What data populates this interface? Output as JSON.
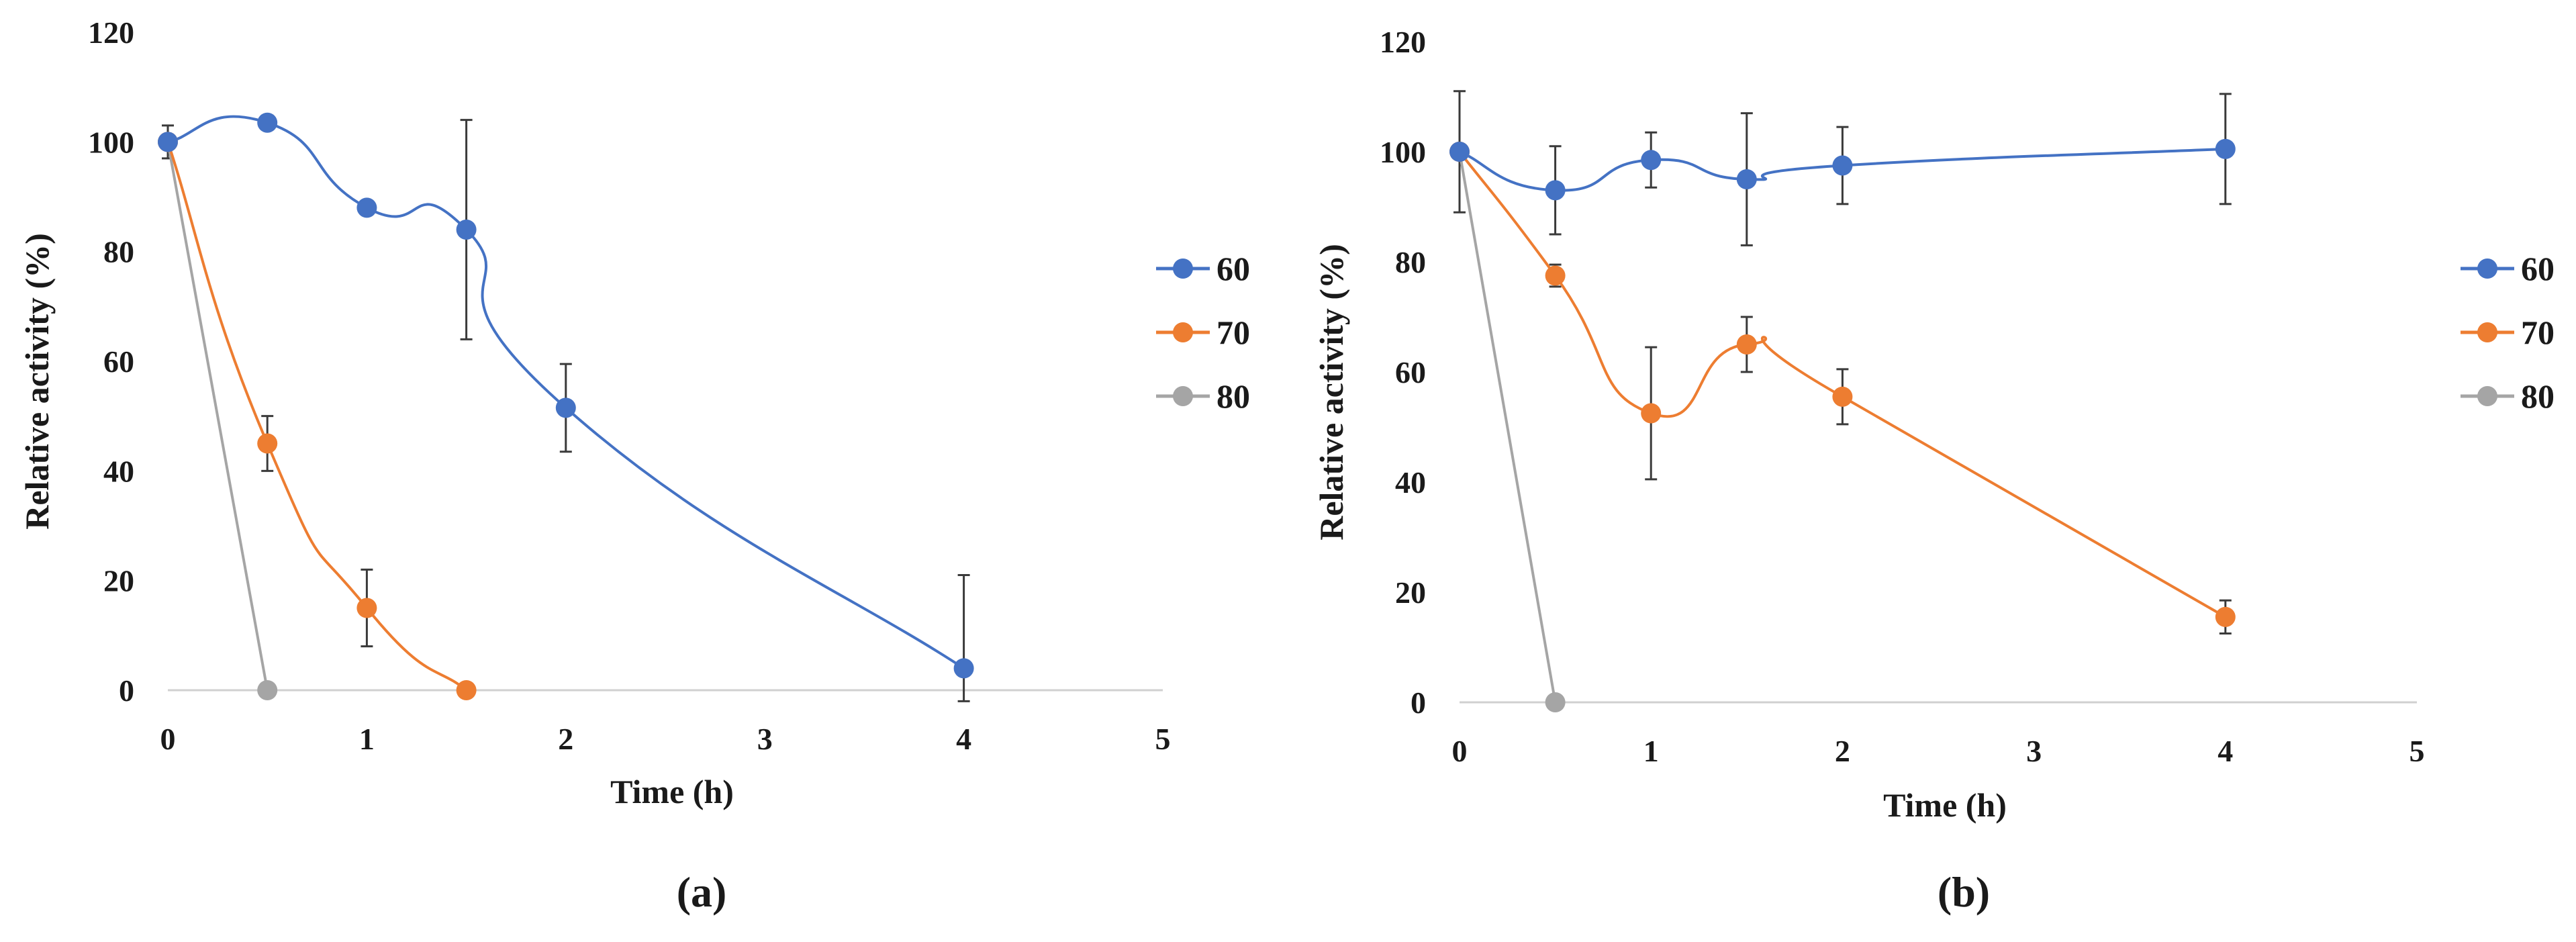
{
  "colors": {
    "s60": "#4472C4",
    "s70": "#ED7D31",
    "s80": "#A5A5A5"
  },
  "chart_data": [
    {
      "id": "a",
      "type": "line",
      "caption": "(a)",
      "xlabel": "Time (h)",
      "ylabel": "Relative activity (%)",
      "xlim": [
        0,
        5
      ],
      "ylim": [
        0,
        120
      ],
      "xticks": [
        "0",
        "1",
        "2",
        "3",
        "4",
        "5"
      ],
      "yticks": [
        "0",
        "20",
        "40",
        "60",
        "80",
        "100",
        "120"
      ],
      "legend_position": "right",
      "series": [
        {
          "name": "60",
          "x": [
            0,
            0.5,
            1,
            1.5,
            2,
            4
          ],
          "y": [
            100,
            103.5,
            88,
            84,
            51.5,
            4
          ],
          "err": [
            0,
            0,
            0,
            20,
            8,
            17
          ]
        },
        {
          "name": "70",
          "x": [
            0,
            0.5,
            1,
            1.5
          ],
          "y": [
            100,
            45,
            15,
            0
          ],
          "err": [
            0,
            5,
            7,
            0
          ]
        },
        {
          "name": "80",
          "x": [
            0,
            0.5
          ],
          "y": [
            100,
            0
          ],
          "err": [
            3,
            0
          ]
        }
      ]
    },
    {
      "id": "b",
      "type": "line",
      "caption": "(b)",
      "xlabel": "Time (h)",
      "ylabel": "Relative activity (%)",
      "xlim": [
        0,
        5
      ],
      "ylim": [
        0,
        120
      ],
      "xticks": [
        "0",
        "1",
        "2",
        "3",
        "4",
        "5"
      ],
      "yticks": [
        "0",
        "20",
        "40",
        "60",
        "80",
        "100",
        "120"
      ],
      "legend_position": "right",
      "series": [
        {
          "name": "60",
          "x": [
            0,
            0.5,
            1,
            1.5,
            2,
            4
          ],
          "y": [
            100,
            93,
            98.5,
            95,
            97.5,
            100.5
          ],
          "err": [
            0,
            8,
            5,
            12,
            7,
            10
          ]
        },
        {
          "name": "70",
          "x": [
            0,
            0.5,
            1,
            1.5,
            2,
            4
          ],
          "y": [
            100,
            77.5,
            52.5,
            65,
            55.5,
            15.5
          ],
          "err": [
            0,
            2,
            12,
            5,
            5,
            3
          ]
        },
        {
          "name": "80",
          "x": [
            0,
            0.5
          ],
          "y": [
            100,
            0
          ],
          "err": [
            11,
            0
          ]
        }
      ]
    }
  ]
}
